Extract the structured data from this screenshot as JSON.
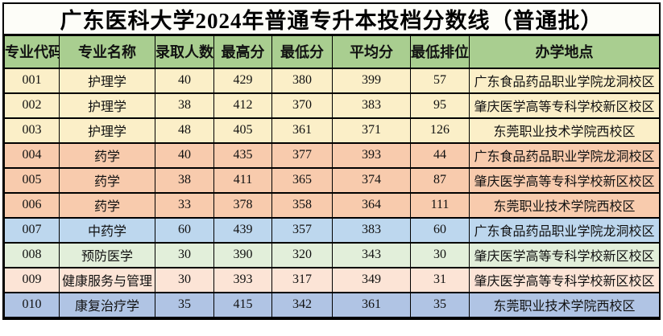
{
  "title": "广东医科大学2024年普通专升本投档分数线（普通批）",
  "colors": {
    "header_bg": "#a9ce90",
    "grid_border": "#000000",
    "group_nursing_bg": "#fbefc8",
    "group_pharmacy_bg": "#f8cbad",
    "row_tcm_bg": "#bdd7ee",
    "row_prevmed_bg": "#e2efda",
    "row_health_bg": "#fce4d6",
    "row_rehab_bg": "#b0c4e4"
  },
  "table": {
    "columns": [
      "专业代码",
      "专业名称",
      "录取人数",
      "最高分",
      "最低分",
      "平均分",
      "最低排位",
      "办学地点"
    ],
    "rows": [
      {
        "code": "001",
        "major": "护理学",
        "admitted": "40",
        "max": "429",
        "min": "380",
        "avg": "399",
        "rank": "57",
        "location": "广东食品药品职业学院龙洞校区",
        "bg": "#fbefc8"
      },
      {
        "code": "002",
        "major": "护理学",
        "admitted": "38",
        "max": "412",
        "min": "370",
        "avg": "383",
        "rank": "95",
        "location": "肇庆医学高等专科学校新区校区",
        "bg": "#fbefc8"
      },
      {
        "code": "003",
        "major": "护理学",
        "admitted": "48",
        "max": "405",
        "min": "361",
        "avg": "371",
        "rank": "126",
        "location": "东莞职业技术学院西校区",
        "bg": "#fbefc8"
      },
      {
        "code": "004",
        "major": "药学",
        "admitted": "40",
        "max": "435",
        "min": "377",
        "avg": "393",
        "rank": "44",
        "location": "广东食品药品职业学院龙洞校区",
        "bg": "#f8cbad"
      },
      {
        "code": "005",
        "major": "药学",
        "admitted": "38",
        "max": "411",
        "min": "365",
        "avg": "374",
        "rank": "87",
        "location": "肇庆医学高等专科学校新区校区",
        "bg": "#f8cbad"
      },
      {
        "code": "006",
        "major": "药学",
        "admitted": "33",
        "max": "378",
        "min": "358",
        "avg": "364",
        "rank": "111",
        "location": "东莞职业技术学院西校区",
        "bg": "#f8cbad"
      },
      {
        "code": "007",
        "major": "中药学",
        "admitted": "60",
        "max": "439",
        "min": "357",
        "avg": "383",
        "rank": "60",
        "location": "广东食品药品职业学院龙洞校区",
        "bg": "#bdd7ee"
      },
      {
        "code": "008",
        "major": "预防医学",
        "admitted": "30",
        "max": "390",
        "min": "320",
        "avg": "343",
        "rank": "30",
        "location": "肇庆医学高等专科学校新区校区",
        "bg": "#e2efda"
      },
      {
        "code": "009",
        "major": "健康服务与管理",
        "admitted": "30",
        "max": "393",
        "min": "317",
        "avg": "349",
        "rank": "31",
        "location": "肇庆医学高等专科学校新区校区",
        "bg": "#fce4d6"
      },
      {
        "code": "010",
        "major": "康复治疗学",
        "admitted": "35",
        "max": "415",
        "min": "342",
        "avg": "361",
        "rank": "35",
        "location": "东莞职业技术学院西校区",
        "bg": "#b0c4e4"
      }
    ]
  }
}
